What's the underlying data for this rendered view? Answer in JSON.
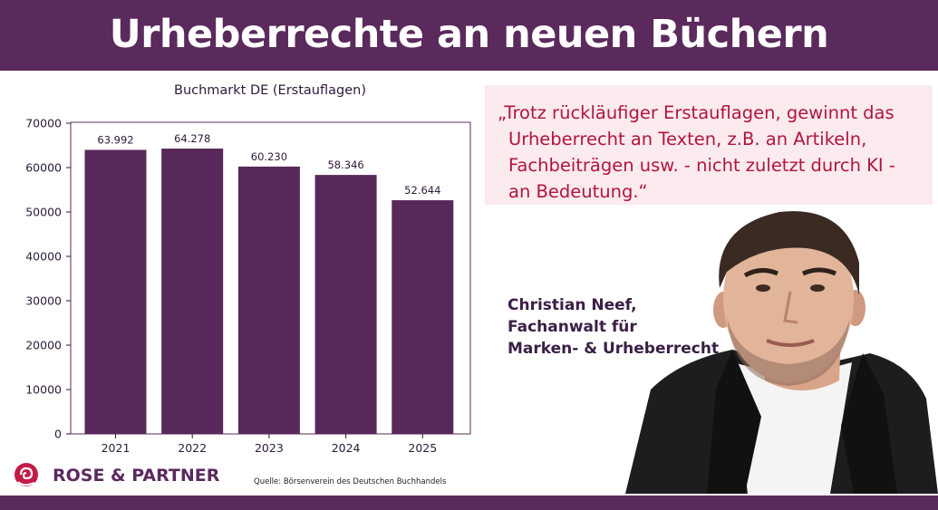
{
  "header": {
    "title": "Urheberrechte an neuen Büchern"
  },
  "chart_data": {
    "type": "bar",
    "title": "Buchmarkt DE (Erstauflagen)",
    "categories": [
      "2021",
      "2022",
      "2023",
      "2024",
      "2025"
    ],
    "values": [
      63992,
      64278,
      60230,
      58346,
      52644
    ],
    "value_labels": [
      "63.992",
      "64.278",
      "60.230",
      "58.346",
      "52.644"
    ],
    "ylim": [
      0,
      70000
    ],
    "yticks": [
      0,
      10000,
      20000,
      30000,
      40000,
      50000,
      60000,
      70000
    ],
    "xlabel": "",
    "ylabel": "",
    "grid": false,
    "bar_color": "#58285a"
  },
  "quote": {
    "lines": [
      "„Trotz rückläufiger Erstauflagen, gewinnt das",
      "Urheberrecht an Texten, z.B. an Artikeln,",
      "Fachbeiträgen usw. - nicht zuletzt durch KI -",
      "an Bedeutung.“"
    ]
  },
  "author": {
    "name": "Christian Neef,",
    "role_line1": "Fachanwalt für",
    "role_line2": "Marken- & Urheberrecht"
  },
  "brand": {
    "name": "ROSE & PARTNER",
    "logo_icon": "rose-logo-icon",
    "color": "#5a2a5c"
  },
  "source": {
    "text": "Quelle: Börsenverein des Deutschen Buchhandels"
  },
  "photo": {
    "icon": "portrait-photo"
  }
}
